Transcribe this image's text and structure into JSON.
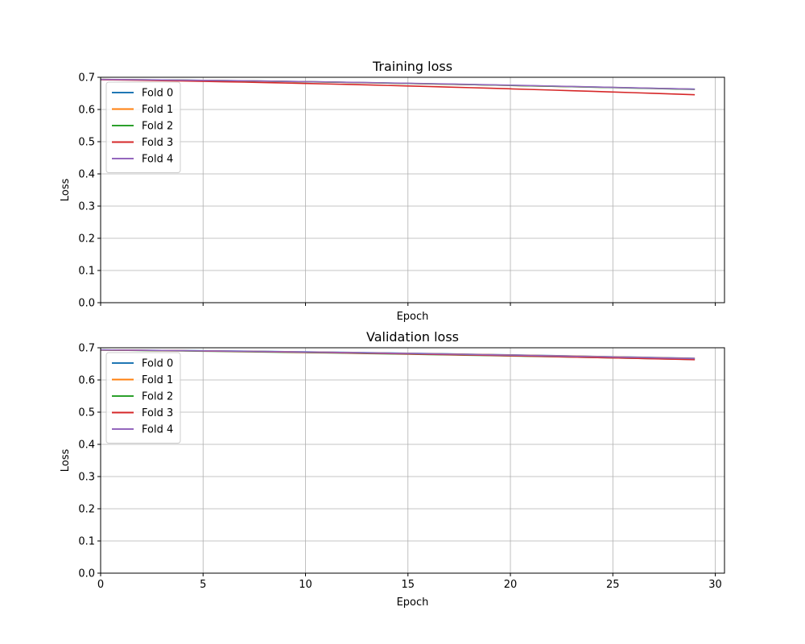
{
  "chart_data": [
    {
      "type": "line",
      "title": "Training loss",
      "xlabel": "Epoch",
      "ylabel": "Loss",
      "xlim": [
        0,
        30.45
      ],
      "ylim": [
        0,
        0.7
      ],
      "xticks": [
        0,
        5,
        10,
        15,
        20,
        25,
        30
      ],
      "yticks": [
        0.0,
        0.1,
        0.2,
        0.3,
        0.4,
        0.5,
        0.6,
        0.7
      ],
      "x_tick_labels_visible": false,
      "grid": true,
      "legend": "upper-left",
      "x": [
        0,
        1,
        2,
        3,
        4,
        5,
        6,
        7,
        8,
        9,
        10,
        11,
        12,
        13,
        14,
        15,
        16,
        17,
        18,
        19,
        20,
        21,
        22,
        23,
        24,
        25,
        26,
        27,
        28,
        29
      ],
      "series": [
        {
          "name": "Fold 0",
          "color": "#1f77b4",
          "values": [
            0.693,
            0.6925,
            0.692,
            0.6915,
            0.691,
            0.6905,
            0.6898,
            0.689,
            0.6882,
            0.6873,
            0.6864,
            0.6854,
            0.6843,
            0.6832,
            0.6821,
            0.681,
            0.6798,
            0.6786,
            0.6774,
            0.6762,
            0.675,
            0.6737,
            0.6724,
            0.6711,
            0.6698,
            0.6685,
            0.6672,
            0.6659,
            0.6646,
            0.6633
          ]
        },
        {
          "name": "Fold 1",
          "color": "#ff7f0e",
          "values": [
            0.6932,
            0.6927,
            0.6921,
            0.6915,
            0.6909,
            0.6902,
            0.6895,
            0.6887,
            0.6879,
            0.687,
            0.6861,
            0.6851,
            0.6841,
            0.683,
            0.6819,
            0.6808,
            0.6796,
            0.6784,
            0.6772,
            0.676,
            0.6747,
            0.6734,
            0.6721,
            0.6708,
            0.6695,
            0.6682,
            0.6669,
            0.6655,
            0.6642,
            0.6628
          ]
        },
        {
          "name": "Fold 2",
          "color": "#2ca02c",
          "values": [
            0.6933,
            0.6928,
            0.6922,
            0.6916,
            0.691,
            0.6903,
            0.6896,
            0.6888,
            0.688,
            0.6871,
            0.6862,
            0.6852,
            0.6842,
            0.6831,
            0.682,
            0.6809,
            0.6797,
            0.6785,
            0.6773,
            0.676,
            0.6747,
            0.6734,
            0.6721,
            0.6707,
            0.6693,
            0.6679,
            0.6665,
            0.6651,
            0.6637,
            0.6622
          ]
        },
        {
          "name": "Fold 3",
          "color": "#d62728",
          "values": [
            0.6925,
            0.6916,
            0.6906,
            0.6896,
            0.6885,
            0.6874,
            0.6862,
            0.685,
            0.6837,
            0.6823,
            0.6809,
            0.6794,
            0.6779,
            0.6763,
            0.6747,
            0.673,
            0.6713,
            0.6696,
            0.6678,
            0.666,
            0.6641,
            0.6622,
            0.6603,
            0.6583,
            0.6563,
            0.6543,
            0.6522,
            0.6501,
            0.648,
            0.6458
          ]
        },
        {
          "name": "Fold 4",
          "color": "#9467bd",
          "values": [
            0.6934,
            0.6929,
            0.6924,
            0.6918,
            0.6912,
            0.6905,
            0.6898,
            0.6891,
            0.6883,
            0.6874,
            0.6865,
            0.6856,
            0.6846,
            0.6836,
            0.6825,
            0.6814,
            0.6803,
            0.6791,
            0.6779,
            0.6767,
            0.6754,
            0.6741,
            0.6728,
            0.6715,
            0.6701,
            0.6687,
            0.6673,
            0.6659,
            0.6645,
            0.663
          ]
        }
      ]
    },
    {
      "type": "line",
      "title": "Validation loss",
      "xlabel": "Epoch",
      "ylabel": "Loss",
      "xlim": [
        0,
        30.45
      ],
      "ylim": [
        0,
        0.7
      ],
      "xticks": [
        0,
        5,
        10,
        15,
        20,
        25,
        30
      ],
      "yticks": [
        0.0,
        0.1,
        0.2,
        0.3,
        0.4,
        0.5,
        0.6,
        0.7
      ],
      "x_tick_labels_visible": true,
      "grid": true,
      "legend": "upper-left",
      "x": [
        0,
        1,
        2,
        3,
        4,
        5,
        6,
        7,
        8,
        9,
        10,
        11,
        12,
        13,
        14,
        15,
        16,
        17,
        18,
        19,
        20,
        21,
        22,
        23,
        24,
        25,
        26,
        27,
        28,
        29
      ],
      "series": [
        {
          "name": "Fold 0",
          "color": "#1f77b4",
          "values": [
            0.6932,
            0.6928,
            0.6923,
            0.6918,
            0.6913,
            0.6907,
            0.6901,
            0.6895,
            0.6888,
            0.6881,
            0.6873,
            0.6865,
            0.6857,
            0.6848,
            0.6839,
            0.683,
            0.682,
            0.681,
            0.68,
            0.679,
            0.6779,
            0.6768,
            0.6757,
            0.6746,
            0.6734,
            0.6722,
            0.671,
            0.6698,
            0.6686,
            0.6674
          ]
        },
        {
          "name": "Fold 1",
          "color": "#ff7f0e",
          "values": [
            0.693,
            0.6925,
            0.692,
            0.6915,
            0.6909,
            0.6903,
            0.6897,
            0.689,
            0.6883,
            0.6876,
            0.6868,
            0.686,
            0.6852,
            0.6843,
            0.6834,
            0.6825,
            0.6815,
            0.6805,
            0.6795,
            0.6785,
            0.6774,
            0.6763,
            0.6752,
            0.6741,
            0.6729,
            0.6717,
            0.6705,
            0.6693,
            0.6681,
            0.6668
          ]
        },
        {
          "name": "Fold 2",
          "color": "#2ca02c",
          "values": [
            0.6928,
            0.6922,
            0.6915,
            0.6908,
            0.6901,
            0.6893,
            0.6885,
            0.6877,
            0.6868,
            0.6859,
            0.685,
            0.6841,
            0.6831,
            0.6821,
            0.6811,
            0.6801,
            0.679,
            0.6779,
            0.6768,
            0.6757,
            0.6746,
            0.6734,
            0.6722,
            0.671,
            0.6698,
            0.6686,
            0.6674,
            0.6661,
            0.6648,
            0.6635
          ]
        },
        {
          "name": "Fold 3",
          "color": "#d62728",
          "values": [
            0.6931,
            0.6926,
            0.692,
            0.6914,
            0.6907,
            0.69,
            0.6893,
            0.6885,
            0.6877,
            0.6868,
            0.6859,
            0.685,
            0.684,
            0.683,
            0.682,
            0.6809,
            0.6798,
            0.6787,
            0.6775,
            0.6763,
            0.6751,
            0.6738,
            0.6725,
            0.6712,
            0.6699,
            0.6686,
            0.6672,
            0.6658,
            0.6644,
            0.663
          ]
        },
        {
          "name": "Fold 4",
          "color": "#9467bd",
          "values": [
            0.6933,
            0.6928,
            0.6923,
            0.6917,
            0.6911,
            0.6905,
            0.6898,
            0.6891,
            0.6884,
            0.6876,
            0.6868,
            0.686,
            0.6851,
            0.6842,
            0.6833,
            0.6823,
            0.6813,
            0.6803,
            0.6793,
            0.6782,
            0.6771,
            0.676,
            0.6749,
            0.6737,
            0.6725,
            0.6713,
            0.6701,
            0.6689,
            0.6677,
            0.6664
          ]
        }
      ]
    }
  ]
}
